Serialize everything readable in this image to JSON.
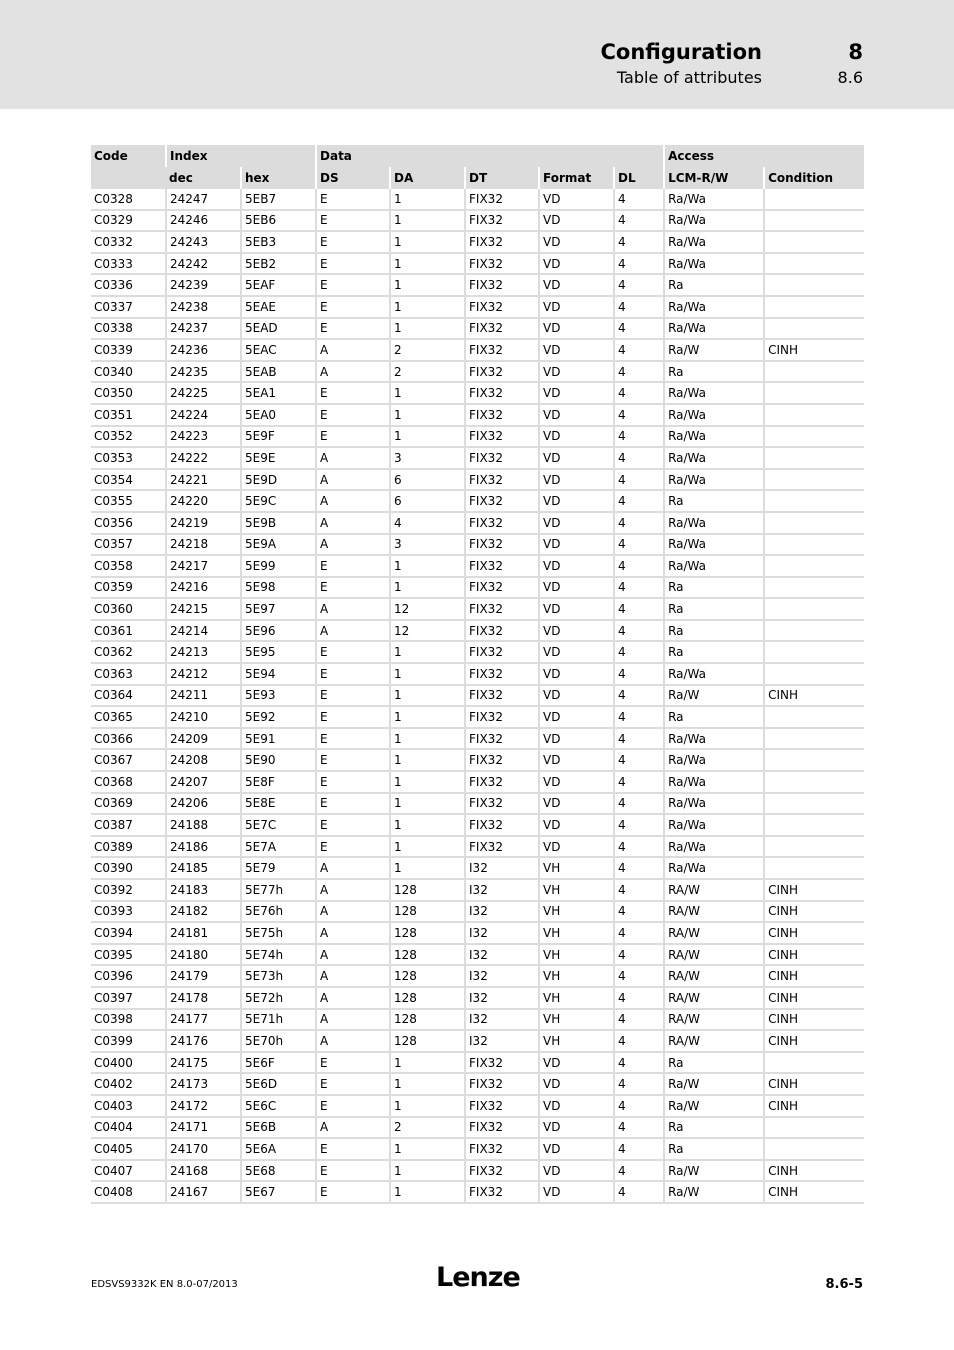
{
  "header": {
    "title": "Configuration",
    "chapter": "8",
    "subtitle": "Table of attributes",
    "section": "8.6"
  },
  "table": {
    "group_headers": {
      "code": "Code",
      "index": "Index",
      "data": "Data",
      "access": "Access"
    },
    "sub_headers": [
      "dec",
      "hex",
      "DS",
      "DA",
      "DT",
      "Format",
      "DL",
      "LCM-R/W",
      "Condition"
    ],
    "rows": [
      [
        "C0328",
        "24247",
        "5EB7",
        "E",
        "1",
        "FIX32",
        "VD",
        "4",
        "Ra/Wa",
        ""
      ],
      [
        "C0329",
        "24246",
        "5EB6",
        "E",
        "1",
        "FIX32",
        "VD",
        "4",
        "Ra/Wa",
        ""
      ],
      [
        "C0332",
        "24243",
        "5EB3",
        "E",
        "1",
        "FIX32",
        "VD",
        "4",
        "Ra/Wa",
        ""
      ],
      [
        "C0333",
        "24242",
        "5EB2",
        "E",
        "1",
        "FIX32",
        "VD",
        "4",
        "Ra/Wa",
        ""
      ],
      [
        "C0336",
        "24239",
        "5EAF",
        "E",
        "1",
        "FIX32",
        "VD",
        "4",
        "Ra",
        ""
      ],
      [
        "C0337",
        "24238",
        "5EAE",
        "E",
        "1",
        "FIX32",
        "VD",
        "4",
        "Ra/Wa",
        ""
      ],
      [
        "C0338",
        "24237",
        "5EAD",
        "E",
        "1",
        "FIX32",
        "VD",
        "4",
        "Ra/Wa",
        ""
      ],
      [
        "C0339",
        "24236",
        "5EAC",
        "A",
        "2",
        "FIX32",
        "VD",
        "4",
        "Ra/W",
        "CINH"
      ],
      [
        "C0340",
        "24235",
        "5EAB",
        "A",
        "2",
        "FIX32",
        "VD",
        "4",
        "Ra",
        ""
      ],
      [
        "C0350",
        "24225",
        "5EA1",
        "E",
        "1",
        "FIX32",
        "VD",
        "4",
        "Ra/Wa",
        ""
      ],
      [
        "C0351",
        "24224",
        "5EA0",
        "E",
        "1",
        "FIX32",
        "VD",
        "4",
        "Ra/Wa",
        ""
      ],
      [
        "C0352",
        "24223",
        "5E9F",
        "E",
        "1",
        "FIX32",
        "VD",
        "4",
        "Ra/Wa",
        ""
      ],
      [
        "C0353",
        "24222",
        "5E9E",
        "A",
        "3",
        "FIX32",
        "VD",
        "4",
        "Ra/Wa",
        ""
      ],
      [
        "C0354",
        "24221",
        "5E9D",
        "A",
        "6",
        "FIX32",
        "VD",
        "4",
        "Ra/Wa",
        ""
      ],
      [
        "C0355",
        "24220",
        "5E9C",
        "A",
        "6",
        "FIX32",
        "VD",
        "4",
        "Ra",
        ""
      ],
      [
        "C0356",
        "24219",
        "5E9B",
        "A",
        "4",
        "FIX32",
        "VD",
        "4",
        "Ra/Wa",
        ""
      ],
      [
        "C0357",
        "24218",
        "5E9A",
        "A",
        "3",
        "FIX32",
        "VD",
        "4",
        "Ra/Wa",
        ""
      ],
      [
        "C0358",
        "24217",
        "5E99",
        "E",
        "1",
        "FIX32",
        "VD",
        "4",
        "Ra/Wa",
        ""
      ],
      [
        "C0359",
        "24216",
        "5E98",
        "E",
        "1",
        "FIX32",
        "VD",
        "4",
        "Ra",
        ""
      ],
      [
        "C0360",
        "24215",
        "5E97",
        "A",
        "12",
        "FIX32",
        "VD",
        "4",
        "Ra",
        ""
      ],
      [
        "C0361",
        "24214",
        "5E96",
        "A",
        "12",
        "FIX32",
        "VD",
        "4",
        "Ra",
        ""
      ],
      [
        "C0362",
        "24213",
        "5E95",
        "E",
        "1",
        "FIX32",
        "VD",
        "4",
        "Ra",
        ""
      ],
      [
        "C0363",
        "24212",
        "5E94",
        "E",
        "1",
        "FIX32",
        "VD",
        "4",
        "Ra/Wa",
        ""
      ],
      [
        "C0364",
        "24211",
        "5E93",
        "E",
        "1",
        "FIX32",
        "VD",
        "4",
        "Ra/W",
        "CINH"
      ],
      [
        "C0365",
        "24210",
        "5E92",
        "E",
        "1",
        "FIX32",
        "VD",
        "4",
        "Ra",
        ""
      ],
      [
        "C0366",
        "24209",
        "5E91",
        "E",
        "1",
        "FIX32",
        "VD",
        "4",
        "Ra/Wa",
        ""
      ],
      [
        "C0367",
        "24208",
        "5E90",
        "E",
        "1",
        "FIX32",
        "VD",
        "4",
        "Ra/Wa",
        ""
      ],
      [
        "C0368",
        "24207",
        "5E8F",
        "E",
        "1",
        "FIX32",
        "VD",
        "4",
        "Ra/Wa",
        ""
      ],
      [
        "C0369",
        "24206",
        "5E8E",
        "E",
        "1",
        "FIX32",
        "VD",
        "4",
        "Ra/Wa",
        ""
      ],
      [
        "C0387",
        "24188",
        "5E7C",
        "E",
        "1",
        "FIX32",
        "VD",
        "4",
        "Ra/Wa",
        ""
      ],
      [
        "C0389",
        "24186",
        "5E7A",
        "E",
        "1",
        "FIX32",
        "VD",
        "4",
        "Ra/Wa",
        ""
      ],
      [
        "C0390",
        "24185",
        "5E79",
        "A",
        "1",
        "I32",
        "VH",
        "4",
        "Ra/Wa",
        ""
      ],
      [
        "C0392",
        "24183",
        "5E77h",
        "A",
        "128",
        "I32",
        "VH",
        "4",
        "RA/W",
        "CINH"
      ],
      [
        "C0393",
        "24182",
        "5E76h",
        "A",
        "128",
        "I32",
        "VH",
        "4",
        "RA/W",
        "CINH"
      ],
      [
        "C0394",
        "24181",
        "5E75h",
        "A",
        "128",
        "I32",
        "VH",
        "4",
        "RA/W",
        "CINH"
      ],
      [
        "C0395",
        "24180",
        "5E74h",
        "A",
        "128",
        "I32",
        "VH",
        "4",
        "RA/W",
        "CINH"
      ],
      [
        "C0396",
        "24179",
        "5E73h",
        "A",
        "128",
        "I32",
        "VH",
        "4",
        "RA/W",
        "CINH"
      ],
      [
        "C0397",
        "24178",
        "5E72h",
        "A",
        "128",
        "I32",
        "VH",
        "4",
        "RA/W",
        "CINH"
      ],
      [
        "C0398",
        "24177",
        "5E71h",
        "A",
        "128",
        "I32",
        "VH",
        "4",
        "RA/W",
        "CINH"
      ],
      [
        "C0399",
        "24176",
        "5E70h",
        "A",
        "128",
        "I32",
        "VH",
        "4",
        "RA/W",
        "CINH"
      ],
      [
        "C0400",
        "24175",
        "5E6F",
        "E",
        "1",
        "FIX32",
        "VD",
        "4",
        "Ra",
        ""
      ],
      [
        "C0402",
        "24173",
        "5E6D",
        "E",
        "1",
        "FIX32",
        "VD",
        "4",
        "Ra/W",
        "CINH"
      ],
      [
        "C0403",
        "24172",
        "5E6C",
        "E",
        "1",
        "FIX32",
        "VD",
        "4",
        "Ra/W",
        "CINH"
      ],
      [
        "C0404",
        "24171",
        "5E6B",
        "A",
        "2",
        "FIX32",
        "VD",
        "4",
        "Ra",
        ""
      ],
      [
        "C0405",
        "24170",
        "5E6A",
        "E",
        "1",
        "FIX32",
        "VD",
        "4",
        "Ra",
        ""
      ],
      [
        "C0407",
        "24168",
        "5E68",
        "E",
        "1",
        "FIX32",
        "VD",
        "4",
        "Ra/W",
        "CINH"
      ],
      [
        "C0408",
        "24167",
        "5E67",
        "E",
        "1",
        "FIX32",
        "VD",
        "4",
        "Ra/W",
        "CINH"
      ]
    ]
  },
  "footer": {
    "doc_id": "EDSVS9332K  EN  8.0-07/2013",
    "logo": "Lenze",
    "page": "8.6-5"
  }
}
